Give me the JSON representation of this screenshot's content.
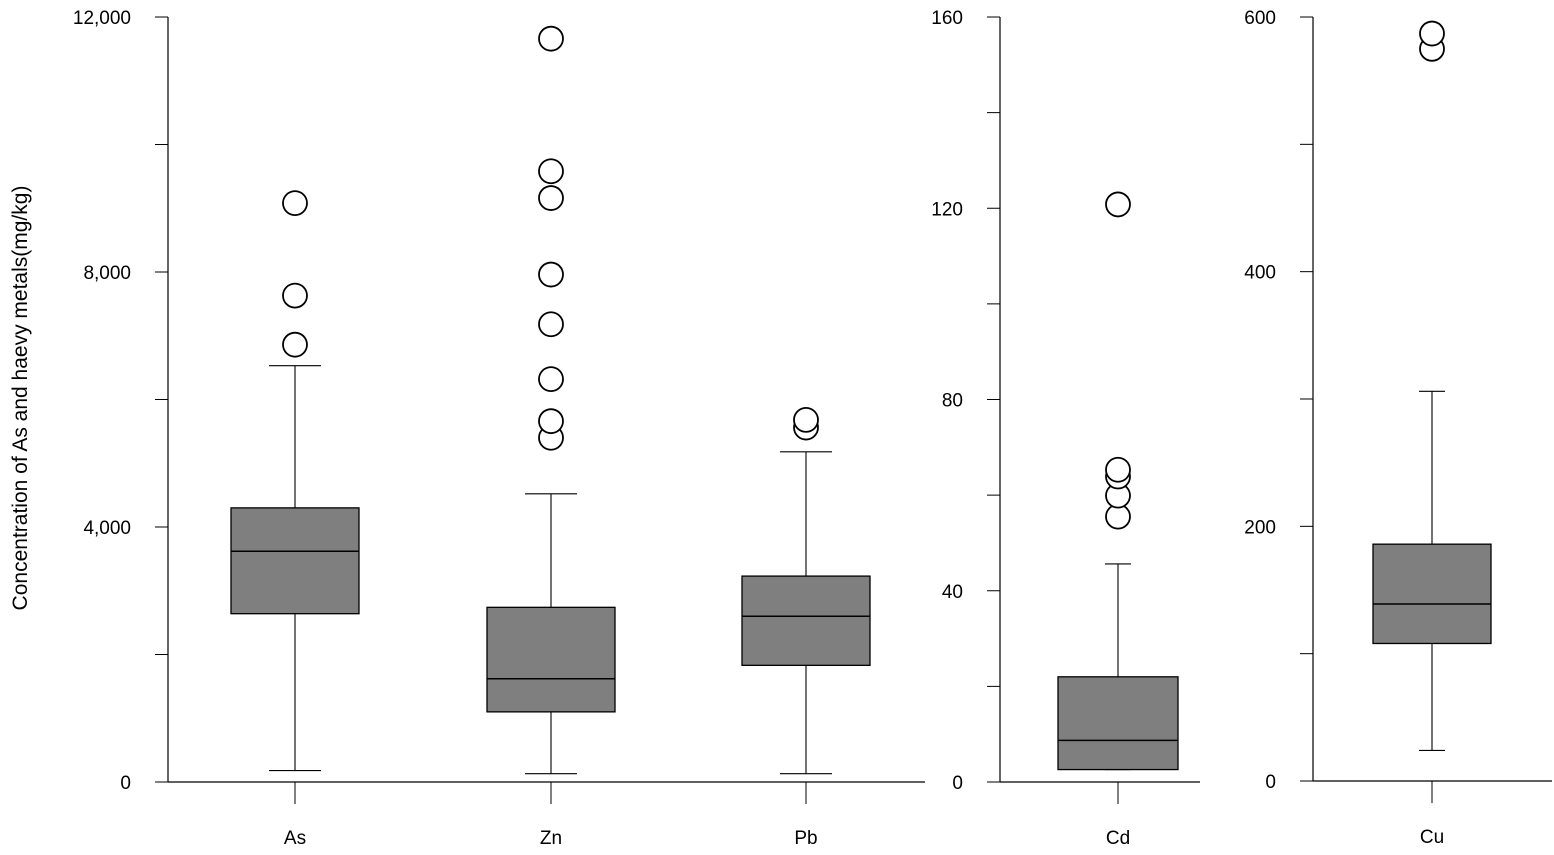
{
  "chart_data": [
    {
      "type": "box",
      "ylabel": "Concentration of As and haevy metals(mg/kg)",
      "ylim": [
        0,
        12000
      ],
      "y_ticks": [
        0,
        2000,
        4000,
        6000,
        8000,
        10000,
        12000
      ],
      "y_tick_labels": [
        "0",
        "",
        "4,000",
        "",
        "8,000",
        "",
        "12,000"
      ],
      "series": [
        {
          "name": "As",
          "min": 180,
          "q1": 2640,
          "median": 3620,
          "q3": 4300,
          "max": 6530,
          "outliers": [
            6860,
            7630,
            9080
          ]
        },
        {
          "name": "Zn",
          "min": 130,
          "q1": 1100,
          "median": 1620,
          "q3": 2740,
          "max": 4520,
          "outliers": [
            5400,
            5660,
            6320,
            7180,
            7960,
            9160,
            9580,
            11660
          ]
        },
        {
          "name": "Pb",
          "min": 130,
          "q1": 1830,
          "median": 2600,
          "q3": 3230,
          "max": 5180,
          "outliers": [
            5560,
            5680
          ]
        }
      ]
    },
    {
      "type": "box",
      "ylim": [
        0,
        160
      ],
      "y_ticks": [
        0,
        20,
        40,
        60,
        80,
        100,
        120,
        140,
        160
      ],
      "y_tick_labels": [
        "0",
        "",
        "40",
        "",
        "80",
        "",
        "120",
        "",
        "160"
      ],
      "series": [
        {
          "name": "Cd",
          "min": 2.6,
          "q1": 2.6,
          "median": 8.7,
          "q3": 22.0,
          "max": 45.6,
          "outliers": [
            55.5,
            59.9,
            63.9,
            65.3,
            120.8
          ]
        }
      ]
    },
    {
      "type": "box",
      "ylim": [
        0,
        600
      ],
      "y_ticks": [
        0,
        100,
        200,
        300,
        400,
        500,
        600
      ],
      "y_tick_labels": [
        "0",
        "",
        "200",
        "",
        "400",
        "",
        "600"
      ],
      "series": [
        {
          "name": "Cu",
          "min": 24,
          "q1": 108,
          "median": 139,
          "q3": 186,
          "max": 306,
          "outliers": [
            575,
            587
          ]
        }
      ]
    }
  ]
}
